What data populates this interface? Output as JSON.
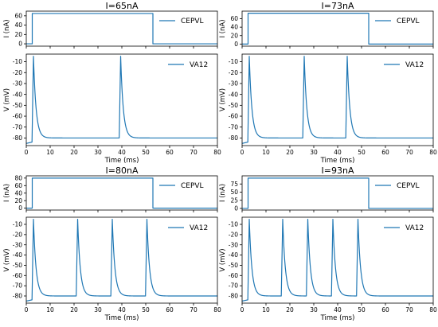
{
  "chart_data": [
    {
      "type": "line",
      "title": "I=65nA",
      "current": {
        "series": [
          {
            "name": "CEPVL",
            "x": [
              0,
              2.5,
              2.5,
              53,
              53,
              80
            ],
            "y": [
              0,
              0,
              65,
              65,
              0,
              0
            ]
          }
        ],
        "xlim": [
          0,
          80
        ],
        "ylim": [
          -5,
          70
        ],
        "yticks": [
          0,
          20,
          40,
          60
        ],
        "ylabel": "I (nA)"
      },
      "voltage": {
        "series": [
          {
            "name": "VA12",
            "spike_times_ms": [
              3,
              39.5
            ]
          }
        ],
        "xlim": [
          0,
          80
        ],
        "ylim": [
          -87,
          -3
        ],
        "xticks": [
          0,
          10,
          20,
          30,
          40,
          50,
          60,
          70,
          80
        ],
        "yticks": [
          -80,
          -70,
          -60,
          -50,
          -40,
          -30,
          -20,
          -10
        ],
        "xlabel": "Time (ms)",
        "ylabel": "V (mV)",
        "rest_mV": -85,
        "peak_mV": -5,
        "plateau_mV": -80
      }
    },
    {
      "type": "line",
      "title": "I=73nA",
      "current": {
        "series": [
          {
            "name": "CEPVL",
            "x": [
              0,
              2.5,
              2.5,
              53,
              53,
              80
            ],
            "y": [
              0,
              0,
              73,
              73,
              0,
              0
            ]
          }
        ],
        "xlim": [
          0,
          80
        ],
        "ylim": [
          -5,
          78
        ],
        "yticks": [
          0,
          20,
          40,
          60
        ],
        "ylabel": "I (nA)"
      },
      "voltage": {
        "series": [
          {
            "name": "VA12",
            "spike_times_ms": [
              3,
              26,
              44
            ]
          }
        ],
        "xlim": [
          0,
          80
        ],
        "ylim": [
          -87,
          -3
        ],
        "xticks": [
          0,
          10,
          20,
          30,
          40,
          50,
          60,
          70,
          80
        ],
        "yticks": [
          -80,
          -70,
          -60,
          -50,
          -40,
          -30,
          -20,
          -10
        ],
        "xlabel": "Time (ms)",
        "ylabel": "V (mV)",
        "rest_mV": -85,
        "peak_mV": -5,
        "plateau_mV": -80
      }
    },
    {
      "type": "line",
      "title": "I=80nA",
      "current": {
        "series": [
          {
            "name": "CEPVL",
            "x": [
              0,
              2.5,
              2.5,
              53,
              53,
              80
            ],
            "y": [
              0,
              0,
              80,
              80,
              0,
              0
            ]
          }
        ],
        "xlim": [
          0,
          80
        ],
        "ylim": [
          -5,
          86
        ],
        "yticks": [
          0,
          20,
          40,
          60,
          80
        ],
        "ylabel": "I (nA)"
      },
      "voltage": {
        "series": [
          {
            "name": "VA12",
            "spike_times_ms": [
              3,
              21.5,
              36,
              50.5
            ]
          }
        ],
        "xlim": [
          0,
          80
        ],
        "ylim": [
          -87,
          -3
        ],
        "xticks": [
          0,
          10,
          20,
          30,
          40,
          50,
          60,
          70,
          80
        ],
        "yticks": [
          -80,
          -70,
          -60,
          -50,
          -40,
          -30,
          -20,
          -10
        ],
        "xlabel": "Time (ms)",
        "ylabel": "V (mV)",
        "rest_mV": -85,
        "peak_mV": -5,
        "plateau_mV": -80
      }
    },
    {
      "type": "line",
      "title": "I=93nA",
      "current": {
        "series": [
          {
            "name": "CEPVL",
            "x": [
              0,
              2.5,
              2.5,
              53,
              53,
              80
            ],
            "y": [
              0,
              0,
              93,
              93,
              0,
              0
            ]
          }
        ],
        "xlim": [
          0,
          80
        ],
        "ylim": [
          -5,
          100
        ],
        "yticks": [
          0,
          25,
          50,
          75
        ],
        "ylabel": "I (nA)"
      },
      "voltage": {
        "series": [
          {
            "name": "VA12",
            "spike_times_ms": [
              3,
              17,
              27.5,
              38,
              48.5
            ]
          }
        ],
        "xlim": [
          0,
          80
        ],
        "ylim": [
          -87,
          -3
        ],
        "xticks": [
          0,
          10,
          20,
          30,
          40,
          50,
          60,
          70,
          80
        ],
        "yticks": [
          -80,
          -70,
          -60,
          -50,
          -40,
          -30,
          -20,
          -10
        ],
        "xlabel": "Time (ms)",
        "ylabel": "V (mV)",
        "rest_mV": -85,
        "peak_mV": -5,
        "plateau_mV": -80
      }
    }
  ]
}
